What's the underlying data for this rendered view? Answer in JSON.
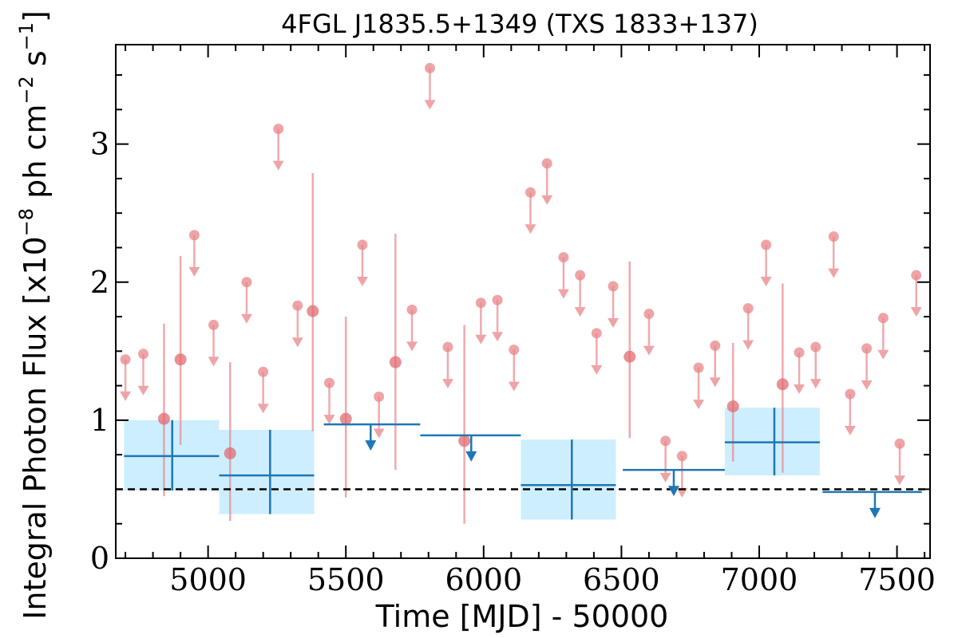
{
  "chart_data": {
    "type": "scatter",
    "title": "4FGL J1835.5+1349 (TXS 1833+137)",
    "xlabel": "Time [MJD] - 50000",
    "ylabel_main": "Integral Photon Flux [x10",
    "ylabel_exp1": "−8",
    "ylabel_mid": " ph cm",
    "ylabel_exp2": "−2",
    "ylabel_s": " s",
    "ylabel_exp3": "−1",
    "ylabel_end": "]",
    "xlim": [
      4665,
      7620
    ],
    "ylim": [
      0,
      3.72
    ],
    "xticks": [
      5000,
      5500,
      6000,
      6500,
      7000,
      7500
    ],
    "yticks": [
      0,
      1,
      2,
      3
    ],
    "grid": false,
    "baseline_dashed": 0.5,
    "colors": {
      "fine": "#e8868a",
      "coarse": "#1f77b4",
      "coarse_box": "#cdeefe",
      "baseline": "#000000"
    },
    "series": [
      {
        "kind": "fine-upper-limits",
        "points": [
          {
            "x": 4700,
            "y": 1.44
          },
          {
            "x": 4765,
            "y": 1.48
          },
          {
            "x": 4950,
            "y": 2.34
          },
          {
            "x": 5020,
            "y": 1.69
          },
          {
            "x": 5140,
            "y": 2.0
          },
          {
            "x": 5200,
            "y": 1.35
          },
          {
            "x": 5255,
            "y": 3.11
          },
          {
            "x": 5325,
            "y": 1.83
          },
          {
            "x": 5440,
            "y": 1.27
          },
          {
            "x": 5560,
            "y": 2.27
          },
          {
            "x": 5620,
            "y": 1.17
          },
          {
            "x": 5740,
            "y": 1.8
          },
          {
            "x": 5805,
            "y": 3.55
          },
          {
            "x": 5870,
            "y": 1.53
          },
          {
            "x": 5990,
            "y": 1.85
          },
          {
            "x": 6050,
            "y": 1.87
          },
          {
            "x": 6110,
            "y": 1.51
          },
          {
            "x": 6170,
            "y": 2.65
          },
          {
            "x": 6230,
            "y": 2.86
          },
          {
            "x": 6290,
            "y": 2.18
          },
          {
            "x": 6350,
            "y": 2.05
          },
          {
            "x": 6410,
            "y": 1.63
          },
          {
            "x": 6470,
            "y": 1.97
          },
          {
            "x": 6600,
            "y": 1.77
          },
          {
            "x": 6660,
            "y": 0.85
          },
          {
            "x": 6720,
            "y": 0.74
          },
          {
            "x": 6780,
            "y": 1.38
          },
          {
            "x": 6840,
            "y": 1.54
          },
          {
            "x": 6960,
            "y": 1.81
          },
          {
            "x": 7025,
            "y": 2.27
          },
          {
            "x": 7145,
            "y": 1.49
          },
          {
            "x": 7205,
            "y": 1.53
          },
          {
            "x": 7270,
            "y": 2.33
          },
          {
            "x": 7330,
            "y": 1.19
          },
          {
            "x": 7390,
            "y": 1.52
          },
          {
            "x": 7450,
            "y": 1.74
          },
          {
            "x": 7510,
            "y": 0.83
          },
          {
            "x": 7570,
            "y": 2.05
          }
        ]
      },
      {
        "kind": "fine-detections",
        "points": [
          {
            "x": 4840,
            "y": 1.01,
            "ylo": 0.45,
            "yhi": 1.7
          },
          {
            "x": 4900,
            "y": 1.44,
            "ylo": 0.82,
            "yhi": 2.19
          },
          {
            "x": 5080,
            "y": 0.76,
            "ylo": 0.27,
            "yhi": 1.42
          },
          {
            "x": 5380,
            "y": 1.79,
            "ylo": 0.92,
            "yhi": 2.79
          },
          {
            "x": 5500,
            "y": 1.01,
            "ylo": 0.44,
            "yhi": 1.75
          },
          {
            "x": 5680,
            "y": 1.42,
            "ylo": 0.64,
            "yhi": 2.35
          },
          {
            "x": 5930,
            "y": 0.85,
            "ylo": 0.25,
            "yhi": 1.69
          },
          {
            "x": 6530,
            "y": 1.46,
            "ylo": 0.87,
            "yhi": 2.15
          },
          {
            "x": 6905,
            "y": 1.1,
            "ylo": 0.7,
            "yhi": 1.56
          },
          {
            "x": 7085,
            "y": 1.26,
            "ylo": 0.62,
            "yhi": 1.99
          }
        ]
      },
      {
        "kind": "coarse-detections",
        "points": [
          {
            "x0": 4695,
            "x1": 5040,
            "x": 4870,
            "y": 0.74,
            "ylo": 0.49,
            "yhi": 1.0
          },
          {
            "x0": 5040,
            "x1": 5385,
            "x": 5225,
            "y": 0.6,
            "ylo": 0.32,
            "yhi": 0.93
          },
          {
            "x0": 6135,
            "x1": 6480,
            "x": 6320,
            "y": 0.53,
            "ylo": 0.28,
            "yhi": 0.86
          },
          {
            "x0": 6875,
            "x1": 7220,
            "x": 7055,
            "y": 0.84,
            "ylo": 0.6,
            "yhi": 1.09
          }
        ]
      },
      {
        "kind": "coarse-upper-limits",
        "points": [
          {
            "x0": 5420,
            "x1": 5770,
            "x": 5590,
            "y": 0.97
          },
          {
            "x0": 5770,
            "x1": 6135,
            "x": 5955,
            "y": 0.89
          },
          {
            "x0": 6505,
            "x1": 6875,
            "x": 6690,
            "y": 0.64
          },
          {
            "x0": 7230,
            "x1": 7590,
            "x": 7420,
            "y": 0.48
          }
        ]
      }
    ]
  }
}
